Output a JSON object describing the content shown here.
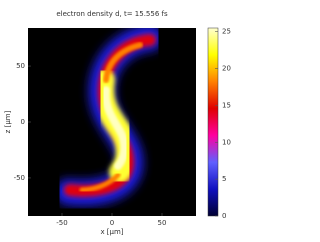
{
  "chart_data": {
    "type": "heatmap",
    "title": "electron density d, t= 15.556 fs",
    "x_label": "x [µm]",
    "y_label": "z [µm]",
    "xlim": [
      -84,
      84
    ],
    "xticks": [
      -50,
      0,
      50
    ],
    "ylim": [
      -84,
      84
    ],
    "yticks": [
      -50,
      0,
      50
    ],
    "clim": [
      0,
      25.5
    ],
    "cticks": [
      0,
      5,
      10,
      15,
      20,
      25
    ],
    "colormap": [
      "#000033",
      "#1010c0",
      "#6060ff",
      "#ff00a0",
      "#e00000",
      "#ff8000",
      "#ffff00",
      "#ffffd0"
    ]
  }
}
